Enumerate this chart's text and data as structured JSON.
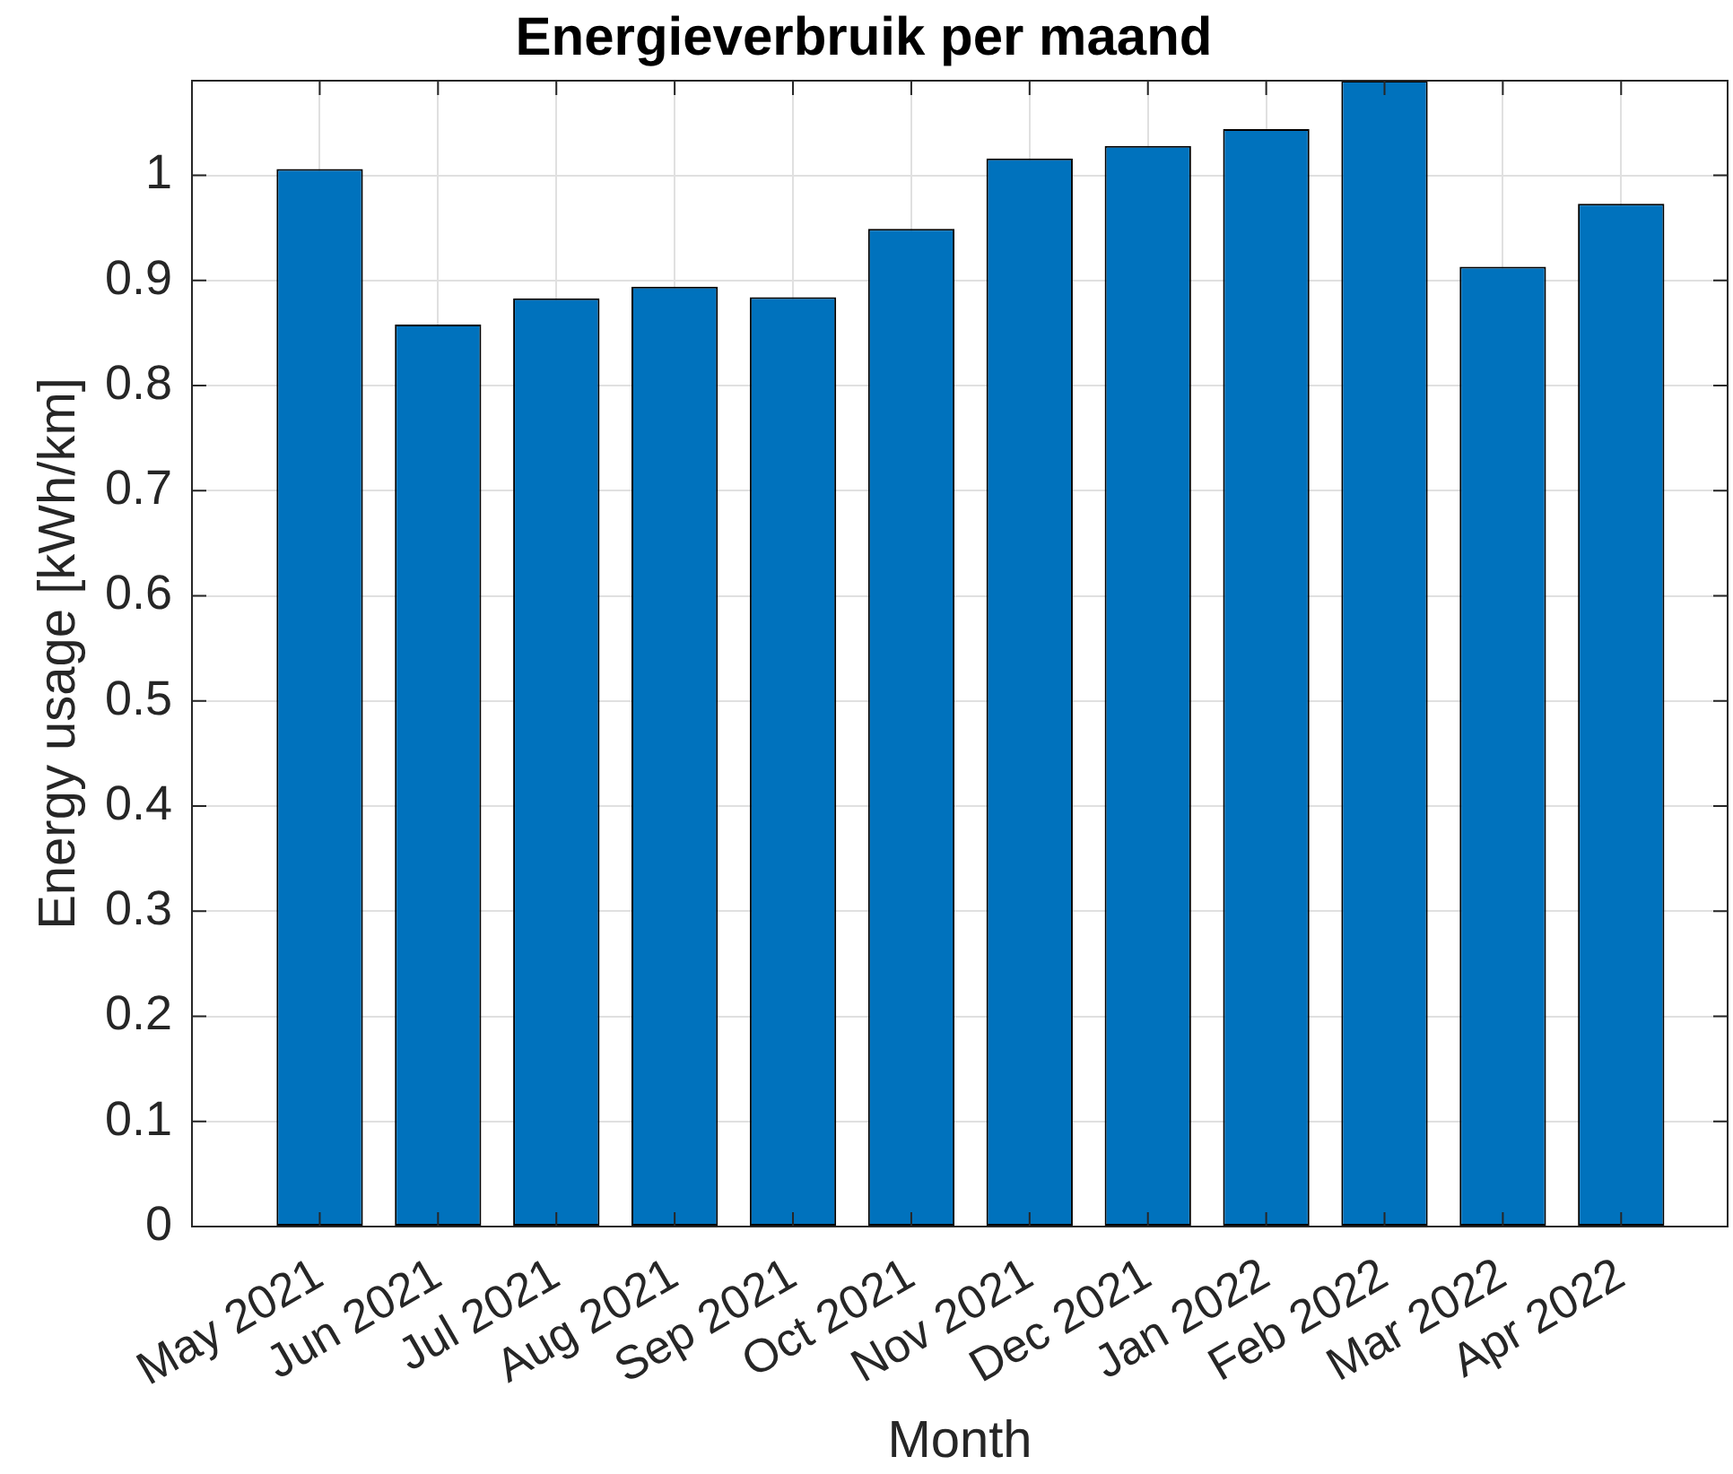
{
  "chart_data": {
    "type": "bar",
    "title": "Energieverbruik per maand",
    "xlabel": "Month",
    "ylabel": "Energy usage [kWh/km]",
    "categories": [
      "May 2021",
      "Jun 2021",
      "Jul 2021",
      "Aug 2021",
      "Sep 2021",
      "Oct 2021",
      "Nov 2021",
      "Dec 2021",
      "Jan 2022",
      "Feb 2022",
      "Mar 2022",
      "Apr 2022"
    ],
    "values": [
      1.006,
      0.858,
      0.883,
      0.894,
      0.884,
      0.949,
      1.016,
      1.028,
      1.044,
      1.09,
      0.913,
      0.973
    ],
    "color": "#0072bd",
    "ylim": [
      0,
      1.09
    ],
    "yticks": [
      0,
      0.1,
      0.2,
      0.3,
      0.4,
      0.5,
      0.6,
      0.7,
      0.8,
      0.9,
      1
    ],
    "grid": true
  }
}
